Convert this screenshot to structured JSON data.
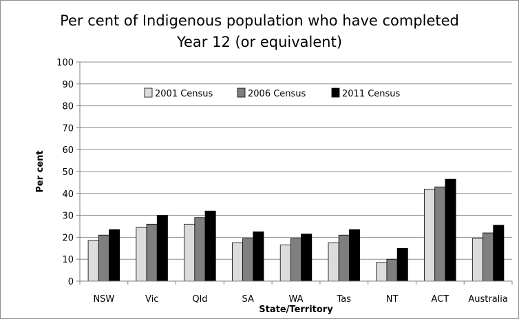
{
  "chart_data": {
    "type": "bar",
    "title_line1": "Per cent of Indigenous population who have completed",
    "title_line2": "Year 12 (or equivalent)",
    "xlabel": "State/Territory",
    "ylabel": "Per cent",
    "ylim": [
      0,
      100
    ],
    "yticks": [
      0,
      10,
      20,
      30,
      40,
      50,
      60,
      70,
      80,
      90,
      100
    ],
    "grid": true,
    "legend_position": "top-center",
    "categories": [
      "NSW",
      "Vic",
      "Qld",
      "SA",
      "WA",
      "Tas",
      "NT",
      "ACT",
      "Australia"
    ],
    "series": [
      {
        "name": "2001 Census",
        "color": "#dcdcdc",
        "values": [
          18.5,
          24.5,
          26,
          17.5,
          16.5,
          17.5,
          8.5,
          42,
          19.5
        ]
      },
      {
        "name": "2006 Census",
        "color": "#7f7f7f",
        "values": [
          21,
          26,
          29,
          19.5,
          19.5,
          21,
          10,
          43,
          22
        ]
      },
      {
        "name": "2011 Census",
        "color": "#000000",
        "values": [
          23.5,
          30,
          32,
          22.5,
          21.5,
          23.5,
          15,
          46.5,
          25.5
        ]
      }
    ]
  }
}
